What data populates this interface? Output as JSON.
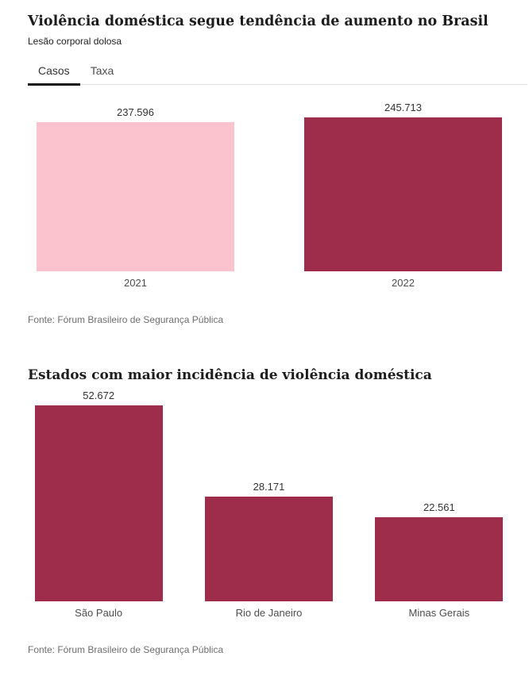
{
  "tabs": {
    "items": [
      {
        "label": "Casos",
        "active": true
      },
      {
        "label": "Taxa",
        "active": false
      }
    ]
  },
  "chart_data": [
    {
      "type": "bar",
      "title": "Violência doméstica segue tendência de aumento no Brasil",
      "subtitle": "Lesão corporal dolosa",
      "categories": [
        "2021",
        "2022"
      ],
      "values": [
        237596,
        245713
      ],
      "value_labels": [
        "237.596",
        "245.713"
      ],
      "bar_colors": [
        "#fbc3cd",
        "#9e2d4c"
      ],
      "xlabel": "",
      "ylabel": "",
      "ylim": [
        0,
        245713
      ],
      "grid": false,
      "legend": "none",
      "value_labels_position": "above",
      "source": "Fonte: Fórum Brasileiro de Segurança Pública"
    },
    {
      "type": "bar",
      "title": "Estados com maior incidência de violência doméstica",
      "subtitle": "",
      "categories": [
        "São Paulo",
        "Rio de Janeiro",
        "Minas Gerais"
      ],
      "values": [
        52672,
        28171,
        22561
      ],
      "value_labels": [
        "52.672",
        "28.171",
        "22.561"
      ],
      "bar_colors": [
        "#9e2d4c",
        "#9e2d4c",
        "#9e2d4c"
      ],
      "xlabel": "",
      "ylabel": "",
      "ylim": [
        0,
        52672
      ],
      "grid": false,
      "legend": "none",
      "value_labels_position": "above",
      "source": "Fonte: Fórum Brasileiro de Segurança Pública"
    }
  ],
  "colors": {
    "accent_dark": "#9e2d4c",
    "accent_light": "#fbc3cd",
    "tab_underline": "#151515",
    "divider": "#dddddd"
  }
}
